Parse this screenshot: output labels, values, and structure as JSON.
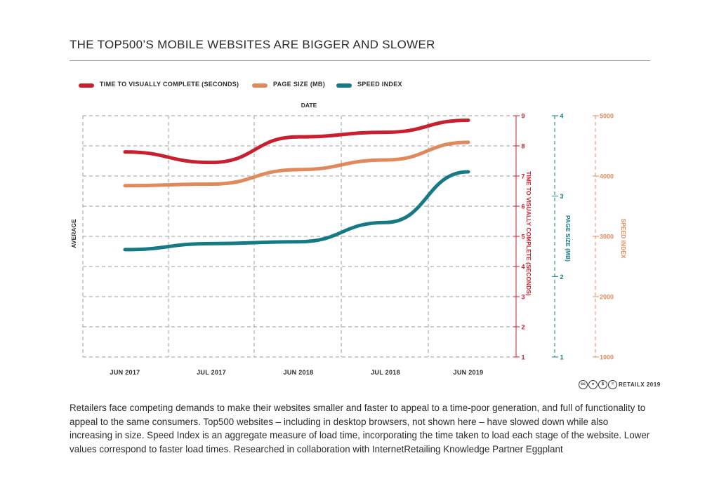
{
  "title": "THE TOP500’S MOBILE WEBSITES ARE BIGGER AND SLOWER",
  "caption": "Retailers face competing demands to make their websites smaller and faster to appeal to a time-poor generation, and full of functionality to appeal to the same consumers. Top500 websites – including in desktop browsers, not shown here – have slowed down while also increasing in size. Speed Index is an aggregate measure of load time, incorporating the time taken to load each stage of the website. Lower values correspond to faster load times. Researched in collaboration with InternetRetailing Knowledge Partner Eggplant",
  "credit": {
    "text": "RETAILX 2019",
    "icons": [
      "cc-icon",
      "by-icon",
      "nc-icon",
      "equals-icon"
    ]
  },
  "legend": [
    {
      "label": "TIME TO VISUALLY COMPLETE (SECONDS)",
      "color": "#c8202e"
    },
    {
      "label": "PAGE SIZE (MB)",
      "color": "#e08a5c"
    },
    {
      "label": "SPEED INDEX",
      "color": "#157a86"
    }
  ],
  "chart_data": {
    "type": "line",
    "xlabel": "DATE",
    "ylabel": "AVERAGE",
    "categories": [
      "JUN 2017",
      "JUL 2017",
      "JUN 2018",
      "JUL 2018",
      "JUN 2019"
    ],
    "axes": [
      {
        "id": "time",
        "label": "TIME TO VISUALLY COMPLETE (SECONDS)",
        "range": [
          1,
          9
        ],
        "ticks": [
          1,
          2,
          3,
          4,
          5,
          6,
          7,
          8,
          9
        ],
        "color": "#c8202e"
      },
      {
        "id": "size",
        "label": "PAGE SIZE (MB)",
        "range": [
          1,
          4
        ],
        "ticks": [
          1,
          2,
          3,
          4
        ],
        "color": "#157a86"
      },
      {
        "id": "speed",
        "label": "SPEED INDEX",
        "range": [
          1000,
          5000
        ],
        "ticks": [
          1000,
          2000,
          3000,
          4000,
          5000
        ],
        "color": "#e08a5c"
      }
    ],
    "series": [
      {
        "name": "TIME TO VISUALLY COMPLETE (SECONDS)",
        "axis": "time",
        "color": "#c8202e",
        "values": [
          7.8,
          7.45,
          8.3,
          8.45,
          8.85
        ]
      },
      {
        "name": "PAGE SIZE (MB)",
        "axis": "size",
        "color": "#e08a5c",
        "values": [
          3.13,
          3.15,
          3.33,
          3.45,
          3.67
        ]
      },
      {
        "name": "SPEED INDEX",
        "axis": "speed",
        "color": "#157a86",
        "values": [
          2780,
          2880,
          2910,
          3230,
          4070
        ]
      }
    ],
    "grid": true
  }
}
